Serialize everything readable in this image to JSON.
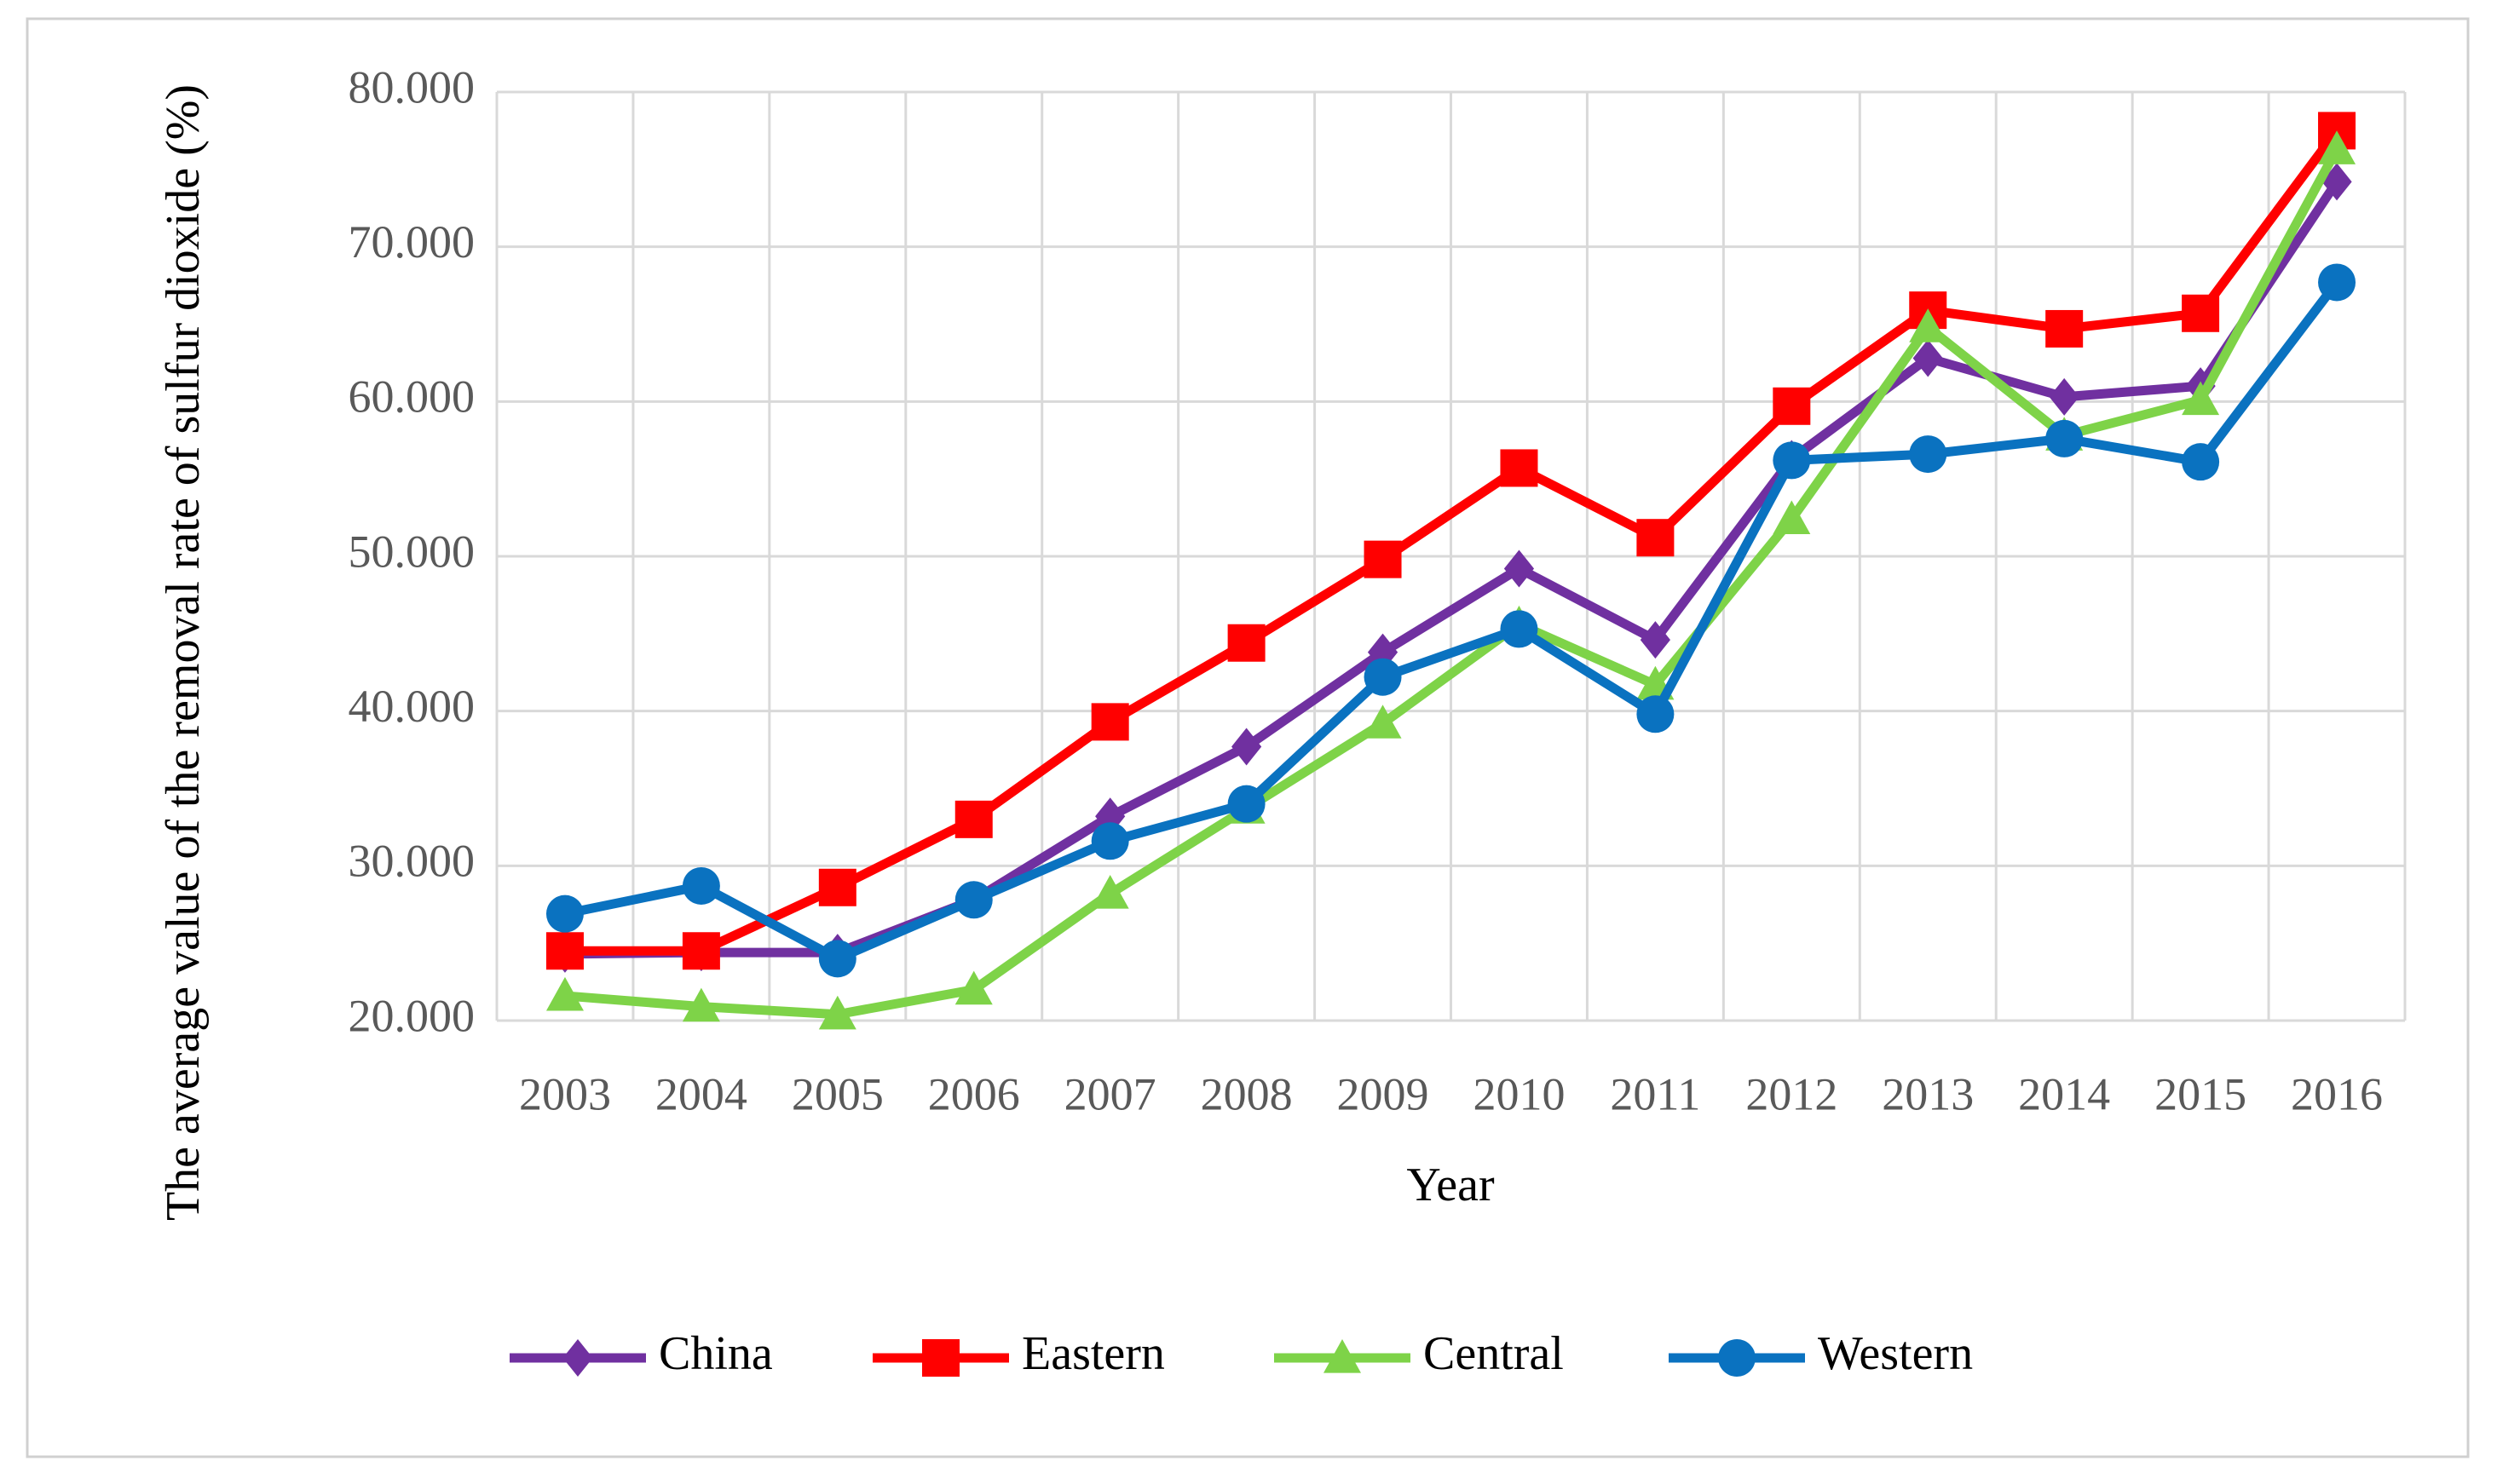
{
  "chart_data": {
    "type": "line",
    "y_label": "The average value of the removal rate of sulfur dioxide (%)",
    "x_label": "Year",
    "categories": [
      "2003",
      "2004",
      "2005",
      "2006",
      "2007",
      "2008",
      "2009",
      "2010",
      "2011",
      "2012",
      "2013",
      "2014",
      "2015",
      "2016"
    ],
    "series": [
      {
        "name": "China",
        "color": "#7030a0",
        "marker": "diamond",
        "values": [
          24.3,
          24.4,
          24.4,
          27.8,
          33.2,
          37.7,
          43.8,
          49.2,
          44.6,
          56.3,
          62.8,
          60.3,
          61.0,
          74.2
        ]
      },
      {
        "name": "Eastern",
        "color": "#ff0000",
        "marker": "square",
        "values": [
          24.5,
          24.5,
          28.6,
          33.0,
          39.3,
          44.4,
          49.8,
          55.7,
          51.2,
          59.7,
          65.9,
          64.7,
          65.7,
          77.5
        ]
      },
      {
        "name": "Central",
        "color": "#7ed348",
        "marker": "triangle",
        "values": [
          21.6,
          20.9,
          20.4,
          22.0,
          28.2,
          33.7,
          39.2,
          45.6,
          41.7,
          52.4,
          64.8,
          57.8,
          60.1,
          76.3
        ]
      },
      {
        "name": "Western",
        "color": "#0a72c0",
        "marker": "circle",
        "values": [
          26.9,
          28.7,
          24.0,
          27.8,
          31.6,
          34.0,
          42.2,
          45.3,
          39.8,
          56.2,
          56.6,
          57.6,
          56.1,
          67.7
        ]
      }
    ],
    "ylim": [
      20,
      80
    ],
    "yticks": [
      {
        "value": 20,
        "label": "20.000"
      },
      {
        "value": 30,
        "label": "30.000"
      },
      {
        "value": 40,
        "label": "40.000"
      },
      {
        "value": 50,
        "label": "50.000"
      },
      {
        "value": 60,
        "label": "60.000"
      },
      {
        "value": 70,
        "label": "70.000"
      },
      {
        "value": 80,
        "label": "80.000"
      }
    ],
    "grid": true,
    "legend": "bottom"
  }
}
